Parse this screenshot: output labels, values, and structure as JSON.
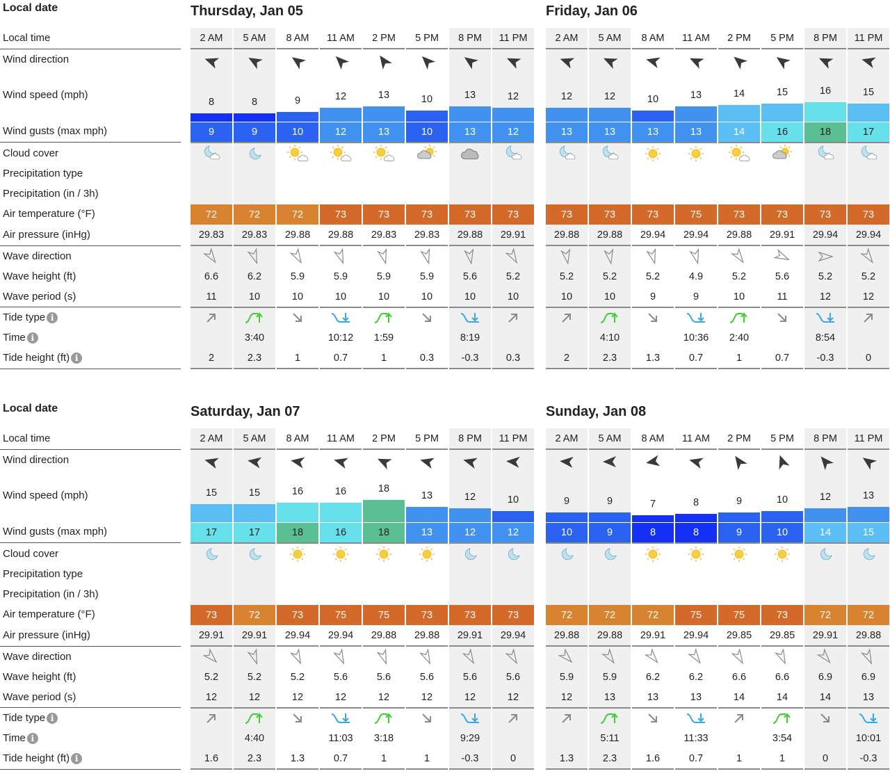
{
  "labels": {
    "local_date": "Local date",
    "local_time": "Local time",
    "wind_direction": "Wind direction",
    "wind_speed": "Wind speed (mph)",
    "wind_gusts": "Wind gusts (max mph)",
    "cloud_cover": "Cloud cover",
    "precipitation_type": "Precipitation type",
    "precipitation": "Precipitation (in / 3h)",
    "air_temperature": "Air temperature (°F)",
    "air_pressure": "Air pressure (inHg)",
    "wave_direction": "Wave direction",
    "wave_height": "Wave height (ft)",
    "wave_period": "Wave period (s)",
    "tide_type": "Tide type",
    "tide_time": "Time",
    "tide_height": "Tide height (ft)",
    "info_glyph": "i"
  },
  "colors": {
    "night_bg": "#f0f0f0",
    "wind_scale": [
      "#1530f5",
      "#2b62f2",
      "#4191f0",
      "#5bbff5",
      "#66e0ea",
      "#5bbf94"
    ],
    "temp_72": "#d8832f",
    "temp_73_plus": "#d46a29",
    "tide_high": "#3ccf2e",
    "tide_low": "#3aa8e0"
  },
  "days": [
    {
      "title": "Thursday, Jan 05",
      "times": [
        "2 AM",
        "5 AM",
        "8 AM",
        "11 AM",
        "2 PM",
        "5 PM",
        "8 PM",
        "11 PM"
      ],
      "night": [
        true,
        true,
        false,
        false,
        false,
        false,
        true,
        true
      ],
      "wind_dir_deg": [
        200,
        210,
        215,
        225,
        235,
        225,
        215,
        205
      ],
      "wind_speed": [
        8,
        8,
        9,
        12,
        13,
        10,
        13,
        12
      ],
      "wind_gust": [
        9,
        9,
        10,
        12,
        13,
        10,
        13,
        12
      ],
      "cloud": [
        "moon-cloud",
        "moon",
        "sun-cloud",
        "sun-cloud",
        "sun-cloud",
        "cloud-sun",
        "cloud",
        "moon-cloud"
      ],
      "temp": [
        72,
        72,
        72,
        73,
        73,
        73,
        73,
        73
      ],
      "pressure": [
        "29.83",
        "29.83",
        "29.88",
        "29.88",
        "29.83",
        "29.83",
        "29.88",
        "29.91"
      ],
      "wave_dir_deg": [
        55,
        70,
        60,
        70,
        75,
        75,
        80,
        60
      ],
      "wave_height": [
        "6.6",
        "6.2",
        "5.9",
        "5.9",
        "5.9",
        "5.9",
        "5.6",
        "5.2"
      ],
      "wave_period": [
        "11",
        "10",
        "10",
        "10",
        "10",
        "10",
        "10",
        "10"
      ],
      "tide_type": [
        "rising",
        "high",
        "falling",
        "low",
        "high",
        "falling",
        "low",
        "rising"
      ],
      "tide_time": [
        "",
        "3:40",
        "",
        "10:12",
        "1:59",
        "",
        "8:19",
        ""
      ],
      "tide_height": [
        "2",
        "2.3",
        "1",
        "0.7",
        "1",
        "0.3",
        "-0.3",
        "0.3"
      ]
    },
    {
      "title": "Friday, Jan 06",
      "times": [
        "2 AM",
        "5 AM",
        "8 AM",
        "11 AM",
        "2 PM",
        "5 PM",
        "8 PM",
        "11 PM"
      ],
      "night": [
        true,
        true,
        false,
        false,
        false,
        false,
        true,
        true
      ],
      "wind_dir_deg": [
        200,
        205,
        195,
        205,
        220,
        215,
        205,
        195
      ],
      "wind_speed": [
        12,
        12,
        10,
        13,
        14,
        15,
        16,
        15
      ],
      "wind_gust": [
        13,
        13,
        13,
        13,
        14,
        16,
        18,
        17
      ],
      "cloud": [
        "moon-cloud",
        "moon-cloud",
        "sun",
        "sun",
        "sun-cloud",
        "cloud-sun",
        "moon-cloud",
        "moon-cloud"
      ],
      "temp": [
        73,
        73,
        73,
        75,
        73,
        73,
        73,
        73
      ],
      "pressure": [
        "29.88",
        "29.88",
        "29.94",
        "29.94",
        "29.88",
        "29.91",
        "29.94",
        "29.94"
      ],
      "wave_dir_deg": [
        80,
        80,
        75,
        75,
        55,
        25,
        0,
        55
      ],
      "wave_height": [
        "5.2",
        "5.2",
        "5.2",
        "4.9",
        "5.2",
        "5.6",
        "5.2",
        "5.2"
      ],
      "wave_period": [
        "10",
        "10",
        "9",
        "9",
        "10",
        "11",
        "12",
        "12"
      ],
      "tide_type": [
        "rising",
        "high",
        "falling",
        "low",
        "high",
        "falling",
        "low",
        "rising"
      ],
      "tide_time": [
        "",
        "4:10",
        "",
        "10:36",
        "2:40",
        "",
        "8:54",
        ""
      ],
      "tide_height": [
        "2",
        "2.3",
        "1.3",
        "0.7",
        "1",
        "0.7",
        "-0.3",
        "0"
      ]
    },
    {
      "title": "Saturday, Jan 07",
      "times": [
        "2 AM",
        "5 AM",
        "8 AM",
        "11 AM",
        "2 PM",
        "5 PM",
        "8 PM",
        "11 PM"
      ],
      "night": [
        true,
        true,
        false,
        false,
        false,
        false,
        true,
        true
      ],
      "wind_dir_deg": [
        195,
        190,
        190,
        195,
        205,
        195,
        195,
        185
      ],
      "wind_speed": [
        15,
        15,
        16,
        16,
        18,
        13,
        12,
        10
      ],
      "wind_gust": [
        17,
        17,
        18,
        16,
        18,
        13,
        12,
        12
      ],
      "cloud": [
        "moon",
        "moon",
        "sun",
        "sun",
        "sun",
        "sun",
        "moon",
        "moon"
      ],
      "temp": [
        73,
        72,
        73,
        75,
        75,
        73,
        73,
        73
      ],
      "pressure": [
        "29.91",
        "29.91",
        "29.94",
        "29.94",
        "29.88",
        "29.88",
        "29.91",
        "29.94"
      ],
      "wave_dir_deg": [
        45,
        70,
        65,
        65,
        70,
        65,
        60,
        60
      ],
      "wave_height": [
        "5.2",
        "5.2",
        "5.2",
        "5.6",
        "5.6",
        "5.6",
        "5.6",
        "5.6"
      ],
      "wave_period": [
        "12",
        "12",
        "12",
        "12",
        "12",
        "12",
        "12",
        "12"
      ],
      "tide_type": [
        "rising",
        "high",
        "falling",
        "low",
        "high",
        "falling",
        "low",
        "rising"
      ],
      "tide_time": [
        "",
        "4:40",
        "",
        "11:03",
        "3:18",
        "",
        "9:29",
        ""
      ],
      "tide_height": [
        "1.6",
        "2.3",
        "1.3",
        "0.7",
        "1",
        "1",
        "-0.3",
        "0"
      ]
    },
    {
      "title": "Sunday, Jan 08",
      "times": [
        "2 AM",
        "5 AM",
        "8 AM",
        "11 AM",
        "2 PM",
        "5 PM",
        "8 PM",
        "11 PM"
      ],
      "night": [
        true,
        true,
        false,
        false,
        false,
        false,
        true,
        true
      ],
      "wind_dir_deg": [
        185,
        180,
        170,
        195,
        235,
        250,
        230,
        215
      ],
      "wind_speed": [
        9,
        9,
        7,
        8,
        9,
        10,
        12,
        13
      ],
      "wind_gust": [
        10,
        9,
        8,
        8,
        9,
        10,
        14,
        15
      ],
      "cloud": [
        "moon",
        "moon",
        "sun",
        "sun",
        "sun",
        "sun",
        "moon",
        "moon"
      ],
      "temp": [
        72,
        72,
        72,
        75,
        75,
        73,
        72,
        72
      ],
      "pressure": [
        "29.88",
        "29.88",
        "29.91",
        "29.94",
        "29.85",
        "29.85",
        "29.91",
        "29.88"
      ],
      "wave_dir_deg": [
        45,
        55,
        50,
        55,
        60,
        65,
        50,
        65
      ],
      "wave_height": [
        "5.9",
        "5.9",
        "6.2",
        "6.2",
        "6.6",
        "6.6",
        "6.9",
        "6.9"
      ],
      "wave_period": [
        "12",
        "13",
        "13",
        "13",
        "14",
        "14",
        "14",
        "13"
      ],
      "tide_type": [
        "rising",
        "high",
        "falling",
        "low",
        "rising",
        "high",
        "falling",
        "low"
      ],
      "tide_time": [
        "",
        "5:11",
        "",
        "11:33",
        "",
        "3:54",
        "",
        "10:01"
      ],
      "tide_height": [
        "1.3",
        "2.3",
        "1.6",
        "0.7",
        "1",
        "1",
        "0",
        "-0.3"
      ]
    }
  ]
}
